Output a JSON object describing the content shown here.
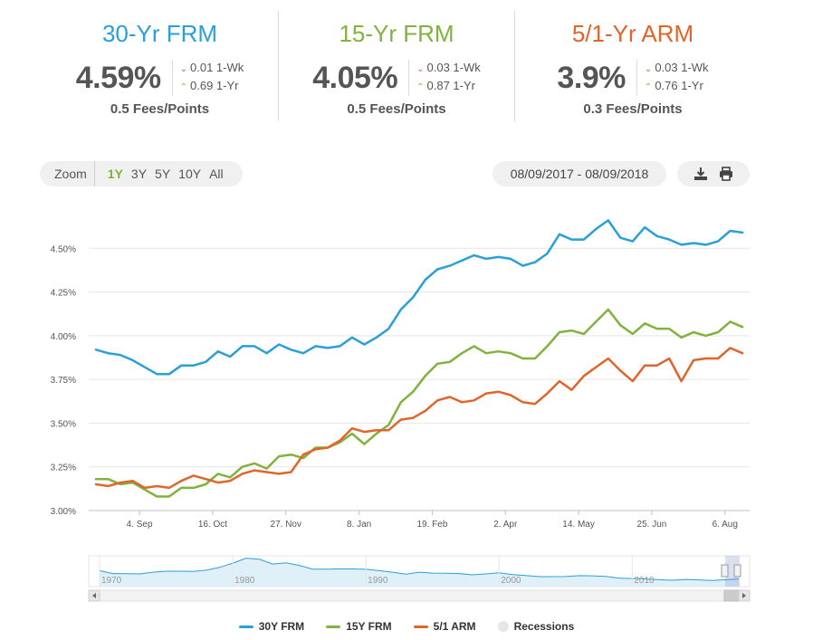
{
  "rates": [
    {
      "title": "30-Yr FRM",
      "color": "#2a9fd8",
      "value": "4.59%",
      "wk": "0.01 1-Wk",
      "wk_dir": "down",
      "yr": "0.69 1-Yr",
      "yr_dir": "up",
      "fees": "0.5 Fees/Points"
    },
    {
      "title": "15-Yr FRM",
      "color": "#7fb33c",
      "value": "4.05%",
      "wk": "0.03 1-Wk",
      "wk_dir": "down",
      "yr": "0.87 1-Yr",
      "yr_dir": "up",
      "fees": "0.5 Fees/Points"
    },
    {
      "title": "5/1-Yr ARM",
      "color": "#e0652a",
      "value": "3.9%",
      "wk": "0.03 1-Wk",
      "wk_dir": "down",
      "yr": "0.76 1-Yr",
      "yr_dir": "up",
      "fees": "0.3 Fees/Points"
    }
  ],
  "zoom": {
    "label": "Zoom",
    "options": [
      "1Y",
      "3Y",
      "5Y",
      "10Y",
      "All"
    ],
    "active": "1Y"
  },
  "date_range": "08/09/2017 - 08/09/2018",
  "icons": {
    "download": "download-icon",
    "print": "print-icon"
  },
  "chart_data": {
    "type": "line",
    "x_start": "2017-08-10",
    "x_step_days": 7,
    "x_tick_labels": [
      "4. Sep",
      "16. Oct",
      "27. Nov",
      "8. Jan",
      "19. Feb",
      "2. Apr",
      "14. May",
      "25. Jun",
      "6. Aug"
    ],
    "x_tick_dates": [
      "2017-09-04",
      "2017-10-16",
      "2017-11-27",
      "2018-01-08",
      "2018-02-19",
      "2018-04-02",
      "2018-05-14",
      "2018-06-25",
      "2018-08-06"
    ],
    "ylim": [
      3.0,
      4.75
    ],
    "y_ticks": [
      3.0,
      3.25,
      3.5,
      3.75,
      4.0,
      4.25,
      4.5
    ],
    "y_tick_labels": [
      "3.00%",
      "3.25%",
      "3.50%",
      "3.75%",
      "4.00%",
      "4.25%",
      "4.50%"
    ],
    "grid": true,
    "series": [
      {
        "name": "30Y FRM",
        "color": "#2a9fd8",
        "values": [
          3.92,
          3.9,
          3.89,
          3.86,
          3.82,
          3.78,
          3.78,
          3.83,
          3.83,
          3.85,
          3.91,
          3.88,
          3.94,
          3.94,
          3.9,
          3.95,
          3.92,
          3.9,
          3.94,
          3.93,
          3.94,
          3.99,
          3.95,
          3.99,
          4.04,
          4.15,
          4.22,
          4.32,
          4.38,
          4.4,
          4.43,
          4.46,
          4.44,
          4.45,
          4.44,
          4.4,
          4.42,
          4.47,
          4.58,
          4.55,
          4.55,
          4.61,
          4.66,
          4.56,
          4.54,
          4.62,
          4.57,
          4.55,
          4.52,
          4.53,
          4.52,
          4.54,
          4.6,
          4.59
        ]
      },
      {
        "name": "15Y FRM",
        "color": "#7fb33c",
        "values": [
          3.18,
          3.18,
          3.15,
          3.16,
          3.12,
          3.08,
          3.08,
          3.13,
          3.13,
          3.15,
          3.21,
          3.19,
          3.25,
          3.27,
          3.24,
          3.31,
          3.32,
          3.3,
          3.36,
          3.36,
          3.39,
          3.44,
          3.38,
          3.44,
          3.49,
          3.62,
          3.68,
          3.77,
          3.84,
          3.85,
          3.9,
          3.94,
          3.9,
          3.91,
          3.9,
          3.87,
          3.87,
          3.94,
          4.02,
          4.03,
          4.01,
          4.08,
          4.15,
          4.06,
          4.01,
          4.07,
          4.04,
          4.04,
          3.99,
          4.02,
          4.0,
          4.02,
          4.08,
          4.05
        ]
      },
      {
        "name": "5/1 ARM",
        "color": "#e0652a",
        "values": [
          3.15,
          3.14,
          3.16,
          3.17,
          3.13,
          3.14,
          3.13,
          3.17,
          3.2,
          3.18,
          3.16,
          3.17,
          3.21,
          3.23,
          3.22,
          3.21,
          3.22,
          3.32,
          3.35,
          3.36,
          3.4,
          3.47,
          3.45,
          3.46,
          3.46,
          3.52,
          3.53,
          3.57,
          3.63,
          3.65,
          3.62,
          3.63,
          3.67,
          3.68,
          3.66,
          3.62,
          3.61,
          3.67,
          3.74,
          3.69,
          3.77,
          3.82,
          3.87,
          3.8,
          3.74,
          3.83,
          3.83,
          3.87,
          3.74,
          3.86,
          3.87,
          3.87,
          3.93,
          3.9
        ]
      }
    ]
  },
  "navigator": {
    "labels": [
      "1970",
      "1980",
      "1990",
      "2000",
      "2010"
    ],
    "values": [
      9.3,
      7.6,
      7.5,
      7.4,
      8.4,
      9.0,
      9.0,
      8.9,
      9.6,
      11.2,
      13.7,
      16.6,
      16.0,
      13.2,
      13.9,
      12.4,
      10.2,
      10.2,
      10.3,
      10.3,
      10.1,
      9.3,
      8.4,
      7.3,
      8.4,
      7.9,
      7.8,
      7.6,
      6.9,
      7.4,
      8.1,
      7.0,
      6.5,
      5.8,
      5.8,
      5.9,
      6.4,
      6.3,
      6.0,
      5.0,
      4.7,
      4.5,
      4.0,
      3.7,
      4.2,
      3.9,
      3.6,
      4.0,
      4.5
    ]
  },
  "legend": [
    {
      "label": "30Y FRM",
      "color": "#2a9fd8",
      "kind": "line"
    },
    {
      "label": "15Y FRM",
      "color": "#7fb33c",
      "kind": "line"
    },
    {
      "label": "5/1 ARM",
      "color": "#e0652a",
      "kind": "line"
    },
    {
      "label": "Recessions",
      "color": "#e6e6e6",
      "kind": "dot"
    }
  ]
}
